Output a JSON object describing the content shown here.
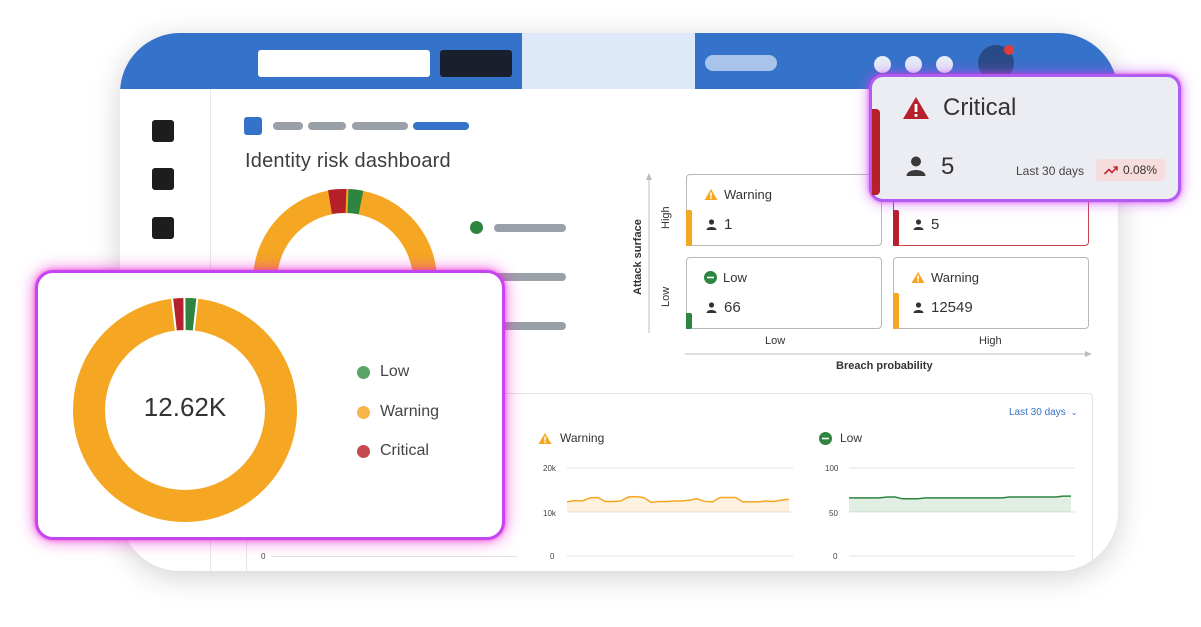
{
  "dashboard": {
    "title": "Identity risk dashboard"
  },
  "colors": {
    "low": "#2e8540",
    "warning": "#f5a623",
    "critical": "#b5202b",
    "brand": "#3572c9"
  },
  "risk_matrix": {
    "y_axis_label": "Attack surface",
    "y_ticks": [
      "High",
      "Low"
    ],
    "x_axis_label": "Breach probability",
    "x_ticks": [
      "Low",
      "High"
    ],
    "cells": [
      {
        "status": "Warning",
        "icon": "warning-icon",
        "count": "1"
      },
      {
        "status": "",
        "icon": "",
        "count": "5"
      },
      {
        "status": "Low",
        "icon": "minus-circle-icon",
        "count": "66"
      },
      {
        "status": "Warning",
        "icon": "warning-icon",
        "count": "12549"
      }
    ]
  },
  "critical_card": {
    "title": "Critical",
    "count": "5",
    "period": "Last 30 days",
    "trend": "0.08%"
  },
  "donut_card": {
    "center_value": "12.62K",
    "legend": [
      "Low",
      "Warning",
      "Critical"
    ]
  },
  "trends_panel": {
    "period_select": "Last 30 days",
    "charts": [
      {
        "title": "Warning",
        "y_ticks": [
          "20k",
          "10k",
          "0"
        ]
      },
      {
        "title": "Low",
        "y_ticks": [
          "100",
          "50",
          "0"
        ]
      }
    ],
    "left_chart_y_tick": "0"
  },
  "chart_data": [
    {
      "type": "pie",
      "categories": [
        "Low",
        "Warning",
        "Critical"
      ],
      "values": [
        66,
        12550,
        5
      ],
      "title": ""
    },
    {
      "type": "area",
      "title": "Warning",
      "ylim": [
        0,
        20000
      ],
      "x": [
        1,
        2,
        3,
        4,
        5,
        6,
        7,
        8,
        9,
        10,
        11,
        12,
        13,
        14,
        15,
        16,
        17,
        18,
        19,
        20,
        21,
        22,
        23,
        24,
        25,
        26,
        27,
        28,
        29,
        30
      ],
      "values": [
        12300,
        12600,
        12500,
        13200,
        13300,
        12400,
        12400,
        12500,
        13400,
        13500,
        13300,
        12200,
        12400,
        12400,
        12500,
        12500,
        12700,
        13000,
        12400,
        12300,
        13300,
        13300,
        13300,
        12300,
        12300,
        12300,
        12500,
        12400,
        12700,
        12900
      ]
    },
    {
      "type": "area",
      "title": "Low",
      "ylim": [
        0,
        100
      ],
      "x": [
        1,
        2,
        3,
        4,
        5,
        6,
        7,
        8,
        9,
        10,
        11,
        12,
        13,
        14,
        15,
        16,
        17,
        18,
        19,
        20,
        21,
        22,
        23,
        24,
        25,
        26,
        27,
        28,
        29,
        30
      ],
      "values": [
        66,
        66,
        66,
        66,
        66,
        67,
        67,
        65,
        65,
        65,
        66,
        66,
        66,
        66,
        66,
        66,
        66,
        66,
        66,
        66,
        66,
        67,
        67,
        67,
        67,
        67,
        67,
        67,
        68,
        68
      ]
    }
  ]
}
